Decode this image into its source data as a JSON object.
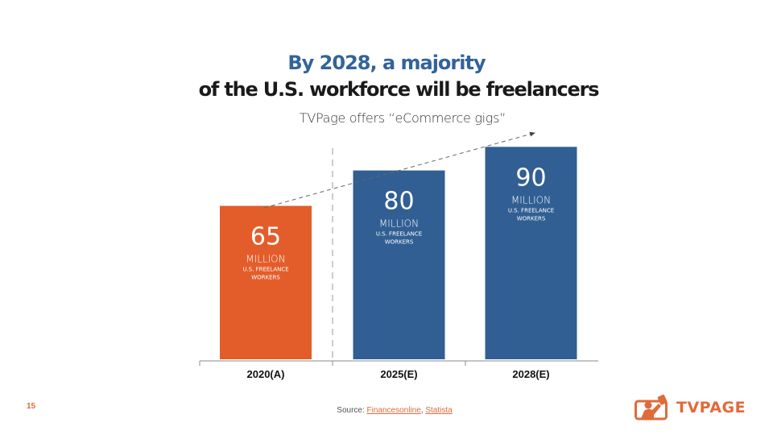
{
  "slide": {
    "title_line1": "By 2028, a majority",
    "title_line2": "of the U.S. workforce will be freelancers",
    "subtitle": "TVPage offers “eCommerce gigs”",
    "page_number": "15",
    "source_label": "Source: ",
    "source_links": [
      "Financesonline",
      "Statista"
    ],
    "source_separator": ", ",
    "logo_text": "TVPAGE",
    "logo_icon": "tvpage-logo-icon",
    "colors": {
      "actual": "#e35d2b",
      "estimate": "#315f93",
      "title_accent": "#33639a",
      "brand": "#e06a3a"
    }
  },
  "chart_data": {
    "type": "bar",
    "title": "By 2028, a majority of the U.S. workforce will be freelancers",
    "subtitle": "TVPage offers “eCommerce gigs”",
    "categories": [
      "2020(A)",
      "2025(E)",
      "2028(E)"
    ],
    "values": [
      65,
      80,
      90
    ],
    "unit": "MILLION",
    "value_caption": "U.S. FREELANCE WORKERS",
    "bar_types": [
      "actual",
      "estimate",
      "estimate"
    ],
    "xlabel": "",
    "ylabel": "U.S. freelance workers (millions)",
    "ylim": [
      0,
      100
    ],
    "grid": false,
    "legend": "none",
    "annotations": [
      "dashed divider between actual and estimate",
      "dashed upward trend arrow"
    ]
  }
}
